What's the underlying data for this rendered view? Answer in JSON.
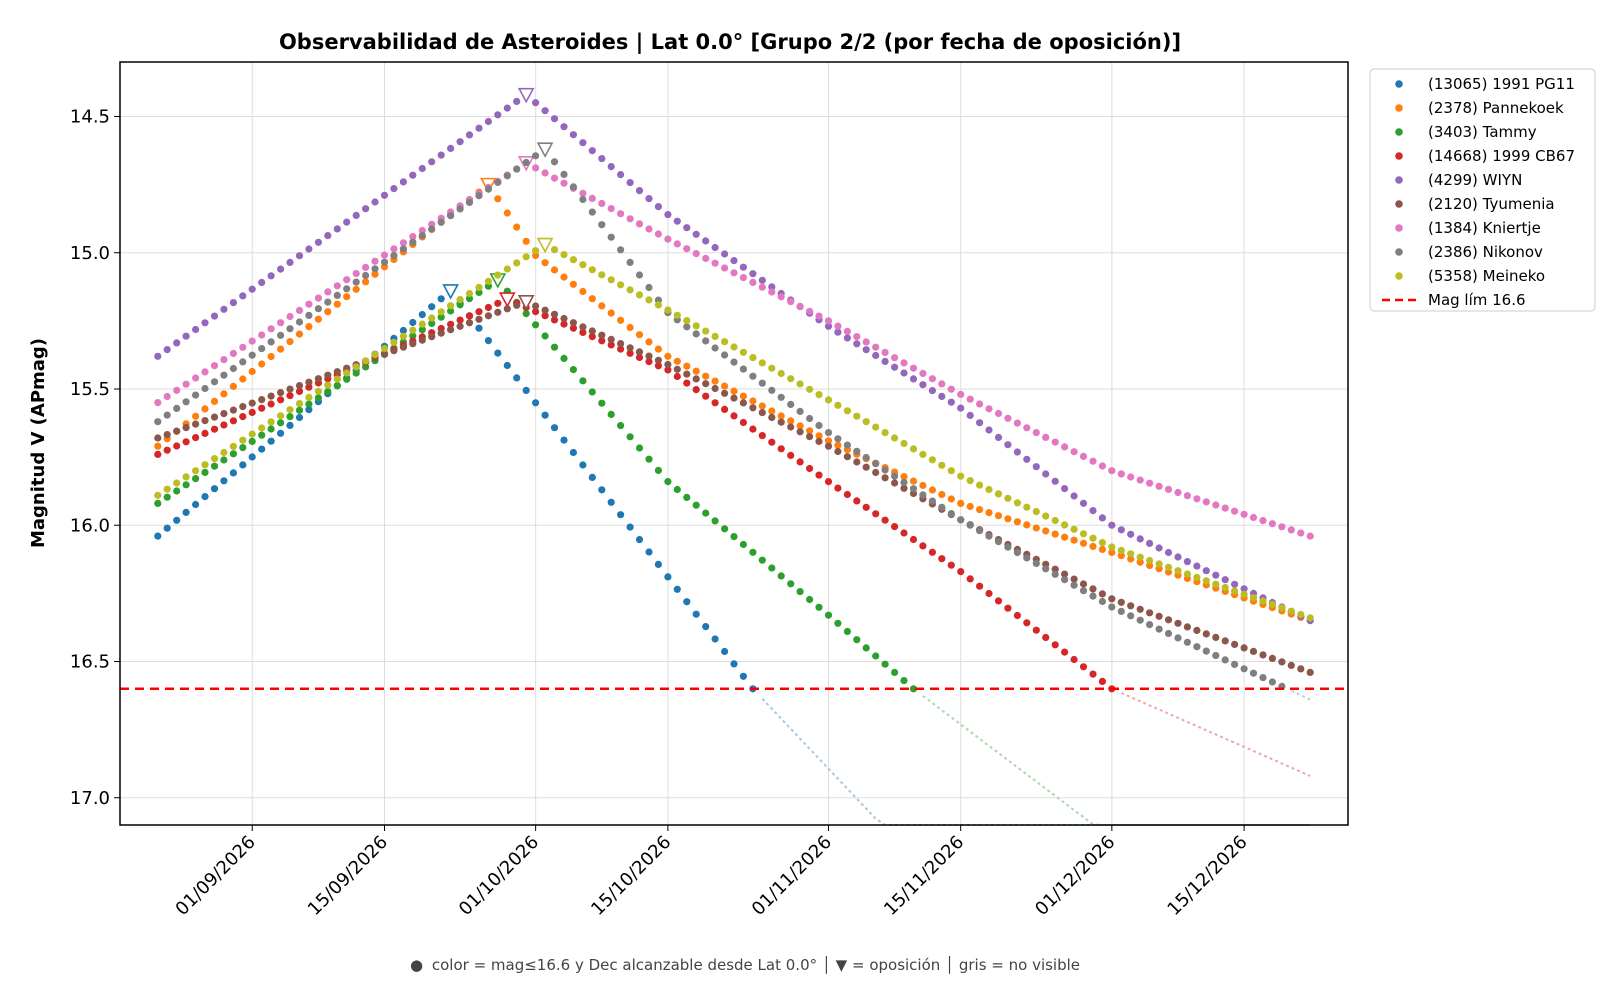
{
  "chart_data": {
    "type": "scatter",
    "title": "Observabilidad de Asteroides  |  Lat 0.0°  [Grupo 2/2 (por fecha de oposición)]",
    "xlabel": "",
    "ylabel": "Magnitud V (APmag)",
    "x_start": "2026-08-22",
    "x_end": "2026-12-22",
    "xlim": [
      "2026-08-18",
      "2026-12-26"
    ],
    "ylim": [
      17.1,
      14.3
    ],
    "y_inverted": true,
    "x_ticks": [
      "01/09/2026",
      "15/09/2026",
      "01/10/2026",
      "15/10/2026",
      "01/11/2026",
      "15/11/2026",
      "01/12/2026",
      "15/12/2026"
    ],
    "y_ticks": [
      "14.5",
      "15.0",
      "15.5",
      "16.0",
      "16.5",
      "17.0"
    ],
    "grid": true,
    "legend_position": "outside-right",
    "limit_line": {
      "value": 16.6,
      "label": "Mag lím 16.6",
      "color": "#ff0000",
      "style": "dashed"
    },
    "series": [
      {
        "name": "(13065) 1991 PG11",
        "color": "#1f77b4",
        "opposition": "2026-09-22",
        "points": [
          [
            "2026-08-22",
            16.04
          ],
          [
            "2026-09-22",
            15.14
          ],
          [
            "2026-10-24",
            16.6
          ],
          [
            "2026-11-08",
            17.15
          ]
        ]
      },
      {
        "name": "(2378) Pannekoek",
        "color": "#ff7f0e",
        "opposition": "2026-09-26",
        "points": [
          [
            "2026-08-22",
            15.71
          ],
          [
            "2026-09-26",
            14.75
          ],
          [
            "2026-10-01",
            15.01
          ],
          [
            "2026-10-15",
            15.38
          ],
          [
            "2026-11-01",
            15.69
          ],
          [
            "2026-11-15",
            15.92
          ],
          [
            "2026-12-01",
            16.1
          ],
          [
            "2026-12-22",
            16.35
          ]
        ]
      },
      {
        "name": "(3403) Tammy",
        "color": "#2ca02c",
        "opposition": "2026-09-27",
        "points": [
          [
            "2026-08-22",
            15.92
          ],
          [
            "2026-09-27",
            15.1
          ],
          [
            "2026-10-15",
            15.84
          ],
          [
            "2026-11-01",
            16.33
          ],
          [
            "2026-11-10",
            16.6
          ],
          [
            "2026-12-01",
            17.15
          ]
        ]
      },
      {
        "name": "(14668) 1999 CB67",
        "color": "#d62728",
        "opposition": "2026-09-28",
        "points": [
          [
            "2026-08-22",
            15.74
          ],
          [
            "2026-09-28",
            15.17
          ],
          [
            "2026-10-15",
            15.43
          ],
          [
            "2026-11-01",
            15.84
          ],
          [
            "2026-11-15",
            16.17
          ],
          [
            "2026-12-01",
            16.6
          ],
          [
            "2026-12-22",
            16.92
          ]
        ]
      },
      {
        "name": "(4299) WIYN",
        "color": "#9467bd",
        "opposition": "2026-09-30",
        "points": [
          [
            "2026-08-22",
            15.38
          ],
          [
            "2026-09-30",
            14.42
          ],
          [
            "2026-10-15",
            14.86
          ],
          [
            "2026-11-01",
            15.27
          ],
          [
            "2026-11-15",
            15.57
          ],
          [
            "2026-12-01",
            16.0
          ],
          [
            "2026-12-22",
            16.35
          ]
        ]
      },
      {
        "name": "(2120) Tyumenia",
        "color": "#8c564b",
        "opposition": "2026-09-30",
        "points": [
          [
            "2026-08-22",
            15.68
          ],
          [
            "2026-09-30",
            15.18
          ],
          [
            "2026-10-15",
            15.41
          ],
          [
            "2026-11-01",
            15.71
          ],
          [
            "2026-11-15",
            15.98
          ],
          [
            "2026-12-01",
            16.27
          ],
          [
            "2026-12-22",
            16.54
          ]
        ]
      },
      {
        "name": "(1384) Kniertje",
        "color": "#e377c2",
        "opposition": "2026-09-30",
        "points": [
          [
            "2026-08-22",
            15.55
          ],
          [
            "2026-09-30",
            14.67
          ],
          [
            "2026-10-15",
            14.95
          ],
          [
            "2026-11-01",
            15.25
          ],
          [
            "2026-11-15",
            15.52
          ],
          [
            "2026-12-01",
            15.8
          ],
          [
            "2026-12-22",
            16.04
          ]
        ]
      },
      {
        "name": "(2386) Nikonov",
        "color": "#7f7f7f",
        "opposition": "2026-10-02",
        "points": [
          [
            "2026-08-22",
            15.62
          ],
          [
            "2026-10-02",
            14.62
          ],
          [
            "2026-10-15",
            15.22
          ],
          [
            "2026-11-01",
            15.66
          ],
          [
            "2026-11-15",
            15.98
          ],
          [
            "2026-12-01",
            16.3
          ],
          [
            "2026-12-22",
            16.64
          ]
        ]
      },
      {
        "name": "(5358) Meineko",
        "color": "#bcbd22",
        "opposition": "2026-10-02",
        "points": [
          [
            "2026-08-22",
            15.89
          ],
          [
            "2026-10-02",
            14.97
          ],
          [
            "2026-10-15",
            15.21
          ],
          [
            "2026-11-01",
            15.54
          ],
          [
            "2026-11-15",
            15.82
          ],
          [
            "2026-12-01",
            16.08
          ],
          [
            "2026-12-22",
            16.34
          ]
        ]
      }
    ]
  },
  "footnote": {
    "circle_symbol": "●",
    "text": "color = mag≤16.6 y Dec alcanzable desde Lat 0.0°  │  ▼ = oposición  │  gris = no visible"
  }
}
